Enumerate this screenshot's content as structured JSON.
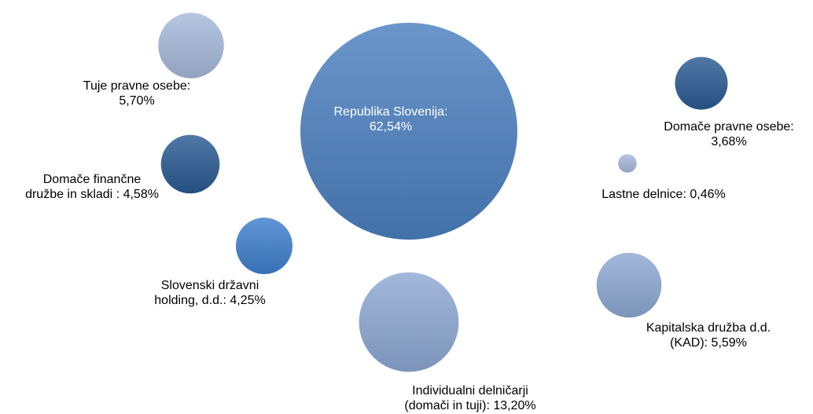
{
  "chart_data": {
    "type": "bubble",
    "title": "",
    "colors": {
      "dark_blue": "#2a5a92",
      "medium_blue": "#3e7fcc",
      "main_blue": "#4b7fbf",
      "light_blue": "#8ea8d3",
      "pale_blue": "#a6b9da"
    },
    "series": [
      {
        "label_lines": [
          "Republika Slovenija:",
          "62,54%"
        ],
        "value": 62.54,
        "color": "main_blue"
      },
      {
        "label_lines": [
          "Tuje pravne osebe:",
          "5,70%"
        ],
        "value": 5.7,
        "color": "pale_blue"
      },
      {
        "label_lines": [
          "Domače finančne",
          "družbe in skladi : 4,58%"
        ],
        "value": 4.58,
        "color": "dark_blue"
      },
      {
        "label_lines": [
          "Slovenski državni",
          "holding, d.d.: 4,25%"
        ],
        "value": 4.25,
        "color": "medium_blue"
      },
      {
        "label_lines": [
          "Individualni delničarji",
          "(domači in tuji): 13,20%"
        ],
        "value": 13.2,
        "color": "light_blue"
      },
      {
        "label_lines": [
          "Kapitalska družba d.d.",
          "(KAD): 5,59%"
        ],
        "value": 5.59,
        "color": "light_blue"
      },
      {
        "label_lines": [
          "Domače pravne osebe:",
          "3,68%"
        ],
        "value": 3.68,
        "color": "dark_blue"
      },
      {
        "label_lines": [
          "Lastne delnice: 0,46%"
        ],
        "value": 0.46,
        "color": "pale_blue"
      }
    ]
  }
}
